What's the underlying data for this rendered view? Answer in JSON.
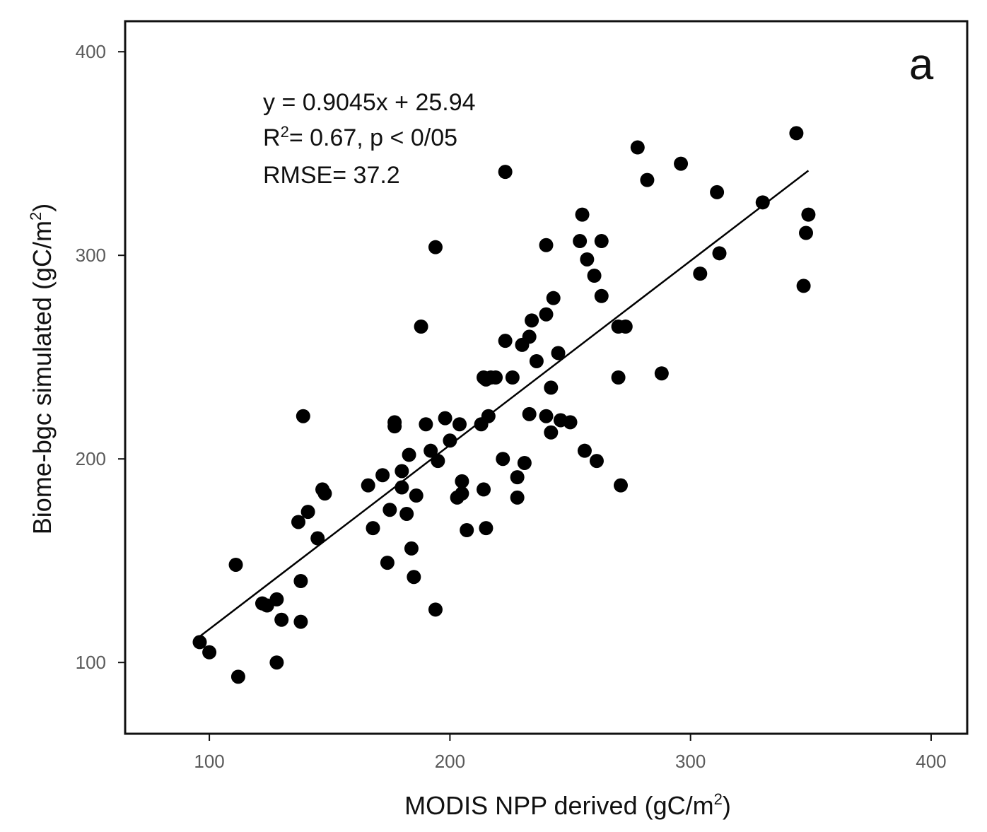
{
  "chart_data": {
    "type": "scatter",
    "panel_label": "a",
    "xlabel": {
      "base": "MODIS NPP derived (gC/m",
      "sup": "2",
      "close": ")"
    },
    "ylabel": {
      "base": "Biome-bgc simulated (gC/m",
      "sup": "2",
      "close": ")"
    },
    "xlim": [
      65,
      415
    ],
    "ylim": [
      65,
      415
    ],
    "x_ticks": [
      100,
      200,
      300,
      400
    ],
    "y_ticks": [
      100,
      200,
      300,
      400
    ],
    "grid": false,
    "annotation": {
      "line1": "y = 0.9045x + 25.94",
      "line2_a": "R",
      "line2_sup": "2",
      "line2_b": "= 0.67, p < 0/05",
      "line3": "RMSE= 37.2"
    },
    "fit_line": {
      "slope": 0.9045,
      "intercept": 25.94,
      "x_range": [
        96,
        349
      ]
    },
    "colors": {
      "points": "#000000",
      "axis": "#111111",
      "line": "#000000"
    },
    "points": [
      {
        "x": 96,
        "y": 110
      },
      {
        "x": 100,
        "y": 105
      },
      {
        "x": 111,
        "y": 148
      },
      {
        "x": 112,
        "y": 93
      },
      {
        "x": 122,
        "y": 129
      },
      {
        "x": 124,
        "y": 128
      },
      {
        "x": 128,
        "y": 131
      },
      {
        "x": 128,
        "y": 100
      },
      {
        "x": 130,
        "y": 121
      },
      {
        "x": 137,
        "y": 169
      },
      {
        "x": 138,
        "y": 140
      },
      {
        "x": 138,
        "y": 120
      },
      {
        "x": 139,
        "y": 221
      },
      {
        "x": 141,
        "y": 174
      },
      {
        "x": 145,
        "y": 161
      },
      {
        "x": 147,
        "y": 185
      },
      {
        "x": 148,
        "y": 183
      },
      {
        "x": 166,
        "y": 187
      },
      {
        "x": 168,
        "y": 166
      },
      {
        "x": 172,
        "y": 192
      },
      {
        "x": 174,
        "y": 149
      },
      {
        "x": 175,
        "y": 175
      },
      {
        "x": 177,
        "y": 218
      },
      {
        "x": 177,
        "y": 216
      },
      {
        "x": 180,
        "y": 194
      },
      {
        "x": 180,
        "y": 186
      },
      {
        "x": 182,
        "y": 173
      },
      {
        "x": 183,
        "y": 202
      },
      {
        "x": 184,
        "y": 156
      },
      {
        "x": 185,
        "y": 142
      },
      {
        "x": 186,
        "y": 182
      },
      {
        "x": 188,
        "y": 265
      },
      {
        "x": 190,
        "y": 217
      },
      {
        "x": 192,
        "y": 204
      },
      {
        "x": 194,
        "y": 304
      },
      {
        "x": 194,
        "y": 126
      },
      {
        "x": 195,
        "y": 199
      },
      {
        "x": 198,
        "y": 220
      },
      {
        "x": 200,
        "y": 209
      },
      {
        "x": 203,
        "y": 181
      },
      {
        "x": 204,
        "y": 217
      },
      {
        "x": 205,
        "y": 189
      },
      {
        "x": 205,
        "y": 183
      },
      {
        "x": 207,
        "y": 165
      },
      {
        "x": 213,
        "y": 217
      },
      {
        "x": 214,
        "y": 185
      },
      {
        "x": 214,
        "y": 240
      },
      {
        "x": 215,
        "y": 239
      },
      {
        "x": 215,
        "y": 166
      },
      {
        "x": 216,
        "y": 221
      },
      {
        "x": 217,
        "y": 240
      },
      {
        "x": 219,
        "y": 240
      },
      {
        "x": 222,
        "y": 200
      },
      {
        "x": 223,
        "y": 258
      },
      {
        "x": 223,
        "y": 341
      },
      {
        "x": 226,
        "y": 240
      },
      {
        "x": 228,
        "y": 191
      },
      {
        "x": 228,
        "y": 181
      },
      {
        "x": 230,
        "y": 256
      },
      {
        "x": 231,
        "y": 198
      },
      {
        "x": 233,
        "y": 260
      },
      {
        "x": 233,
        "y": 222
      },
      {
        "x": 234,
        "y": 268
      },
      {
        "x": 236,
        "y": 248
      },
      {
        "x": 240,
        "y": 305
      },
      {
        "x": 240,
        "y": 271
      },
      {
        "x": 240,
        "y": 221
      },
      {
        "x": 242,
        "y": 235
      },
      {
        "x": 242,
        "y": 213
      },
      {
        "x": 243,
        "y": 279
      },
      {
        "x": 245,
        "y": 252
      },
      {
        "x": 246,
        "y": 219
      },
      {
        "x": 250,
        "y": 218
      },
      {
        "x": 254,
        "y": 307
      },
      {
        "x": 255,
        "y": 320
      },
      {
        "x": 256,
        "y": 204
      },
      {
        "x": 257,
        "y": 298
      },
      {
        "x": 260,
        "y": 290
      },
      {
        "x": 261,
        "y": 199
      },
      {
        "x": 263,
        "y": 307
      },
      {
        "x": 263,
        "y": 280
      },
      {
        "x": 270,
        "y": 265
      },
      {
        "x": 270,
        "y": 240
      },
      {
        "x": 271,
        "y": 187
      },
      {
        "x": 273,
        "y": 265
      },
      {
        "x": 278,
        "y": 353
      },
      {
        "x": 282,
        "y": 337
      },
      {
        "x": 288,
        "y": 242
      },
      {
        "x": 296,
        "y": 345
      },
      {
        "x": 304,
        "y": 291
      },
      {
        "x": 311,
        "y": 331
      },
      {
        "x": 312,
        "y": 301
      },
      {
        "x": 330,
        "y": 326
      },
      {
        "x": 344,
        "y": 360
      },
      {
        "x": 347,
        "y": 285
      },
      {
        "x": 348,
        "y": 311
      },
      {
        "x": 349,
        "y": 320
      }
    ]
  }
}
